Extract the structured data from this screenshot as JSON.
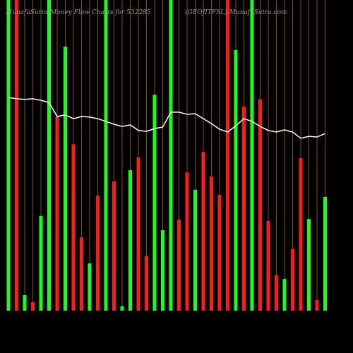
{
  "chart_data": {
    "type": "bar",
    "title_left": "MunafaSutra Money Flow Charts for 532285",
    "title_right": "(GEOJITFSL) MunafaSutra.com",
    "ylim": [
      0,
      100
    ],
    "grid_color": "#8b4a12",
    "bars": {
      "values": [
        100,
        100,
        5,
        2.7,
        30.5,
        100,
        62.5,
        85,
        53.6,
        23.6,
        15.2,
        37,
        100,
        41.6,
        1.4,
        45.2,
        49.3,
        17.5,
        69.5,
        25.9,
        100,
        29.3,
        44.5,
        38.9,
        51.1,
        43.2,
        37.3,
        100,
        83.9,
        65.7,
        100,
        68,
        28.9,
        11.4,
        10.2,
        19.8,
        49.1,
        29.5,
        3.4,
        36.6
      ],
      "colors": [
        "#1aff1a",
        "#ff1a1a",
        "#1aff1a",
        "#ff1a1a",
        "#1aff1a",
        "#1aff1a",
        "#ff1a1a",
        "#1aff1a",
        "#ff1a1a",
        "#ff1a1a",
        "#1aff1a",
        "#ff1a1a",
        "#1aff1a",
        "#ff1a1a",
        "#1aff1a",
        "#1aff1a",
        "#ff1a1a",
        "#ff1a1a",
        "#1aff1a",
        "#1aff1a",
        "#1aff1a",
        "#ff1a1a",
        "#ff1a1a",
        "#1aff1a",
        "#ff1a1a",
        "#ff1a1a",
        "#ff1a1a",
        "#ff1a1a",
        "#1aff1a",
        "#ff1a1a",
        "#1aff1a",
        "#ff1a1a",
        "#ff1a1a",
        "#ff1a1a",
        "#1aff1a",
        "#ff1a1a",
        "#ff1a1a",
        "#1aff1a",
        "#ff1a1a",
        "#1aff1a"
      ]
    },
    "line": {
      "color": "#ffffff",
      "values": [
        68.6,
        68.2,
        68,
        68.2,
        67.7,
        67,
        62.5,
        63,
        61.8,
        62.5,
        62.3,
        61.8,
        60.9,
        60,
        59.3,
        59.8,
        58,
        57.7,
        58.6,
        59.1,
        63.9,
        63.9,
        63.2,
        63.4,
        61.8,
        60.2,
        58.4,
        57.5,
        59.5,
        61.8,
        60.9,
        59.3,
        58,
        57.5,
        58.2,
        57.5,
        55.5,
        56.1,
        55.9,
        57
      ]
    }
  }
}
